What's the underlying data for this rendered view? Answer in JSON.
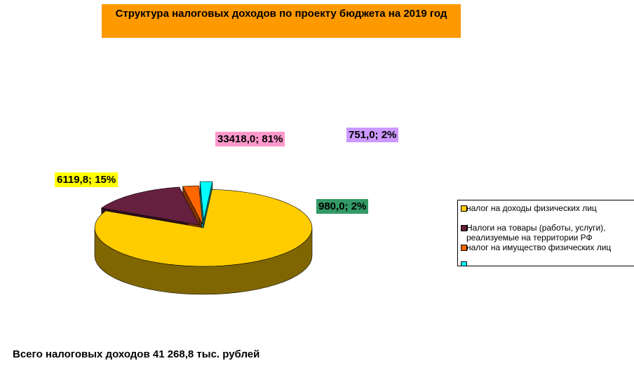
{
  "chart_data": {
    "type": "pie3d",
    "title": "Структура налоговых доходов  по проекту бюджета на 2019 год",
    "categories": [
      "налог на доходы физических лиц",
      "Налоги на товары (работы, услуги), реализуемые на территории РФ",
      "налог на имущество физических лиц",
      null
    ],
    "values": [
      33418.0,
      6119.8,
      980.0,
      751.0
    ],
    "value_labels": [
      "33418,0; 81%",
      "6119,8; 15%",
      "980,0; 2%",
      "751,0; 2%"
    ],
    "colors": [
      "#ffcc00",
      "#66203f",
      "#ff6600",
      "#00ffff"
    ],
    "label_colors": [
      "#ff99cc",
      "#ffff00",
      "#339966",
      "#cc99ff"
    ],
    "footnote": "Всего налоговых доходов 41 268,8 тыс. рублей"
  }
}
